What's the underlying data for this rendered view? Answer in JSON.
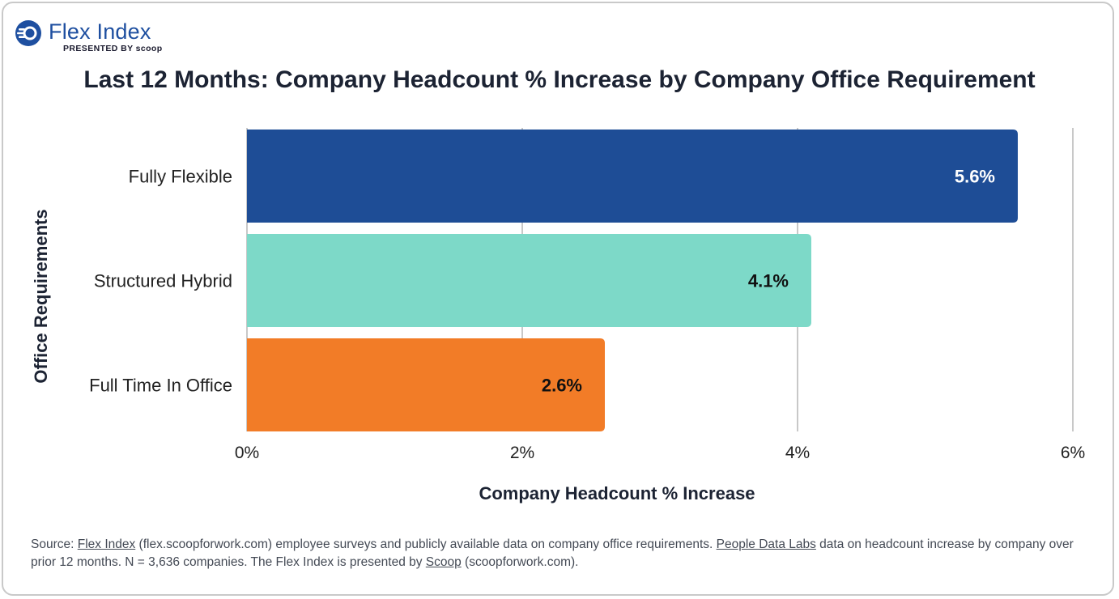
{
  "header": {
    "logo_name": "Flex Index",
    "logo_sub": "PRESENTED BY scoop",
    "title": "Last 12 Months: Company Headcount % Increase by Company Office Requirement"
  },
  "chart_data": {
    "type": "bar",
    "orientation": "horizontal",
    "title": "Last 12 Months: Company Headcount % Increase by Company Office Requirement",
    "xlabel": "Company Headcount % Increase",
    "ylabel": "Office Requirements",
    "categories": [
      "Fully Flexible",
      "Structured Hybrid",
      "Full Time In Office"
    ],
    "values": [
      5.6,
      4.1,
      2.6
    ],
    "value_labels": [
      "5.6%",
      "4.1%",
      "2.6%"
    ],
    "colors": [
      "#1e4d96",
      "#7dd9c8",
      "#f27c27"
    ],
    "label_colors": [
      "#ffffff",
      "#111111",
      "#111111"
    ],
    "xlim": [
      0,
      6
    ],
    "xticks": [
      0,
      2,
      4,
      6
    ],
    "xtick_labels": [
      "0%",
      "2%",
      "4%",
      "6%"
    ],
    "grid": true
  },
  "footer": {
    "source_prefix": "Source: ",
    "link1": "Flex Index",
    "text1": " (flex.scoopforwork.com) employee surveys and publicly available data on company office requirements. ",
    "link2": "People Data Labs",
    "text2": " data on headcount increase by company over prior 12 months. N = 3,636 companies. The Flex Index is presented by ",
    "link3": "Scoop",
    "text3": " (scoopforwork.com)."
  }
}
